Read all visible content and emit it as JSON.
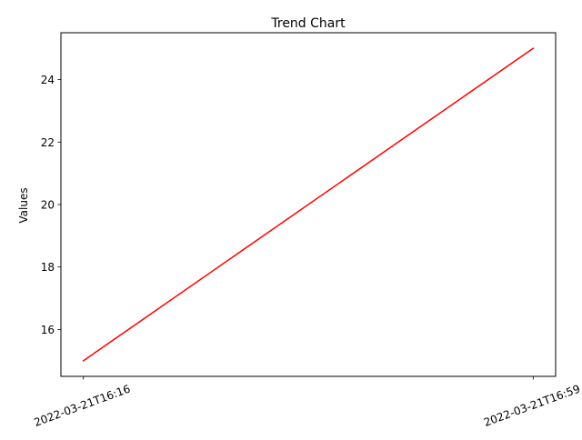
{
  "chart_data": {
    "type": "line",
    "title": "Trend Chart",
    "xlabel": "",
    "ylabel": "Values",
    "categories": [
      "2022-03-21T16:16",
      "2022-03-21T16:59"
    ],
    "series": [
      {
        "values": [
          15,
          25
        ],
        "color": "#ff0000"
      }
    ],
    "ylim": [
      14.5,
      25.5
    ],
    "yticks": [
      16,
      18,
      20,
      22,
      24
    ],
    "grid": false,
    "legend": "none"
  }
}
